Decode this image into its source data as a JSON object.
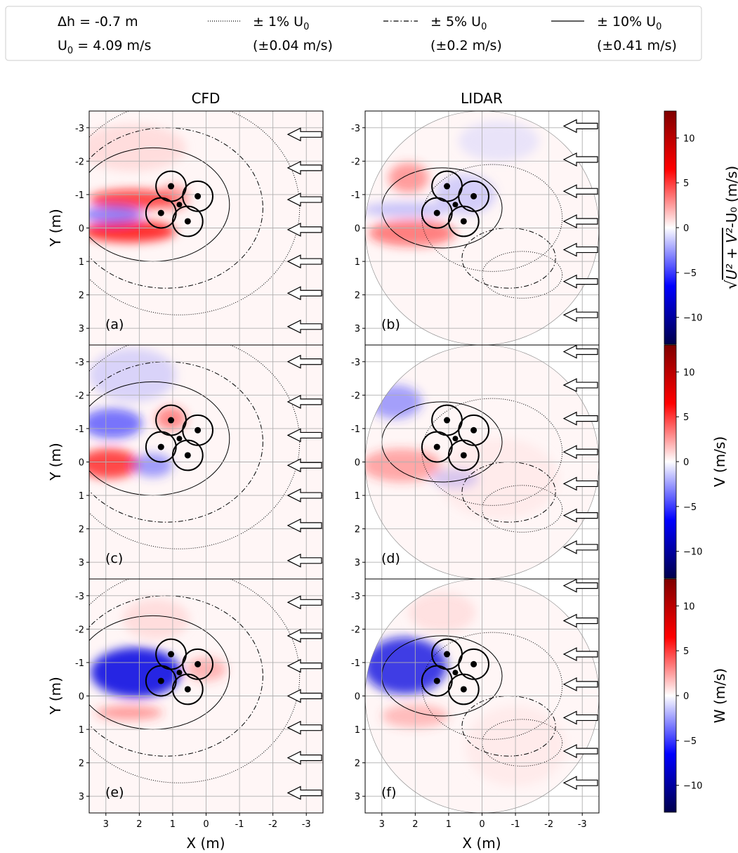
{
  "legend": {
    "params": [
      {
        "text": "Δh = -0.7 m"
      },
      {
        "text": "U",
        "sub": "0",
        "after": " = 4.09 m/s"
      }
    ],
    "entries": [
      {
        "style": "dotted",
        "pct": "± 1%",
        "sym": "U",
        "sub": "0",
        "abs": "(±0.04 m/s)"
      },
      {
        "style": "dashdot",
        "pct": "± 5%",
        "sym": "U",
        "sub": "0",
        "abs": "(±0.2 m/s)"
      },
      {
        "style": "solid",
        "pct": "± 10%",
        "sym": "U",
        "sub": "0",
        "abs": "(±0.41 m/s)"
      }
    ]
  },
  "column_titles": [
    "CFD",
    "LIDAR"
  ],
  "panel_labels": [
    "(a)",
    "(b)",
    "(c)",
    "(d)",
    "(e)",
    "(f)"
  ],
  "x_label": "X (m)",
  "y_label": "Y (m)",
  "colorbars": [
    {
      "label_root": "U",
      "label_main": "√(U² + V²)-U₀ (m/s)",
      "label_sq": "U² + V²",
      "label_tail": "-U₀ (m/s)",
      "ticks": [
        "10",
        "5",
        "0",
        "−5",
        "−10"
      ]
    },
    {
      "label_main": "V (m/s)",
      "ticks": [
        "10",
        "5",
        "0",
        "−5",
        "−10"
      ]
    },
    {
      "label_main": "W (m/s)",
      "ticks": [
        "10",
        "5",
        "0",
        "−5",
        "−10"
      ]
    }
  ],
  "chart_data": {
    "type": "heatmap",
    "layout": "3 rows x 2 columns",
    "columns": [
      "CFD",
      "LIDAR"
    ],
    "rows": [
      "sqrt(U^2+V^2)-U0",
      "V",
      "W"
    ],
    "x_ticks": [
      3,
      2,
      1,
      0,
      -1,
      -2,
      -3
    ],
    "x_tick_labels": [
      "3",
      "2",
      "1",
      "0",
      "-1",
      "-2",
      "-3"
    ],
    "y_ticks": [
      -3,
      -2,
      -1,
      0,
      1,
      2,
      3
    ],
    "y_tick_labels": [
      "-3",
      "-2",
      "-1",
      "0",
      "1",
      "2",
      "3"
    ],
    "xlim": [
      3.5,
      -3.5
    ],
    "ylim": [
      -3.5,
      3.5
    ],
    "grid": true,
    "colormap": "seismic",
    "color_range": [
      -13,
      13
    ],
    "colorbar_ticks": [
      10,
      5,
      0,
      -5,
      -10
    ],
    "turbines": [
      {
        "x": 1.05,
        "y": -1.25,
        "radius": 0.45
      },
      {
        "x": 0.25,
        "y": -0.95,
        "radius": 0.45
      },
      {
        "x": 1.35,
        "y": -0.45,
        "radius": 0.45
      },
      {
        "x": 0.55,
        "y": -0.2,
        "radius": 0.45
      }
    ],
    "center_point": {
      "x": 0.8,
      "y": -0.7
    },
    "inflow_arrows_y": {
      "CFD_row1": [
        -2.8,
        -1.8,
        -0.85,
        0.05,
        1.0,
        1.95,
        2.95
      ],
      "LIDAR_row1": [
        -3.05,
        -2.05,
        -1.1,
        -0.2,
        0.65,
        1.6,
        2.6
      ],
      "CFD_row2": [
        -3.0,
        -1.8,
        -0.8,
        0.1,
        1.0,
        1.9,
        2.95
      ],
      "LIDAR_row2": [
        -3.3,
        -2.3,
        -1.3,
        -0.3,
        0.65,
        1.6,
        2.55
      ],
      "CFD_row3": [
        -2.8,
        -1.8,
        -0.9,
        0.0,
        0.95,
        1.85,
        2.9
      ],
      "LIDAR_row3": [
        -3.3,
        -2.25,
        -1.25,
        -0.35,
        0.65,
        1.65,
        2.6
      ]
    },
    "contour_levels_m_s": {
      "dotted": 0.04,
      "dashdot": 0.2,
      "solid": 0.41
    }
  }
}
